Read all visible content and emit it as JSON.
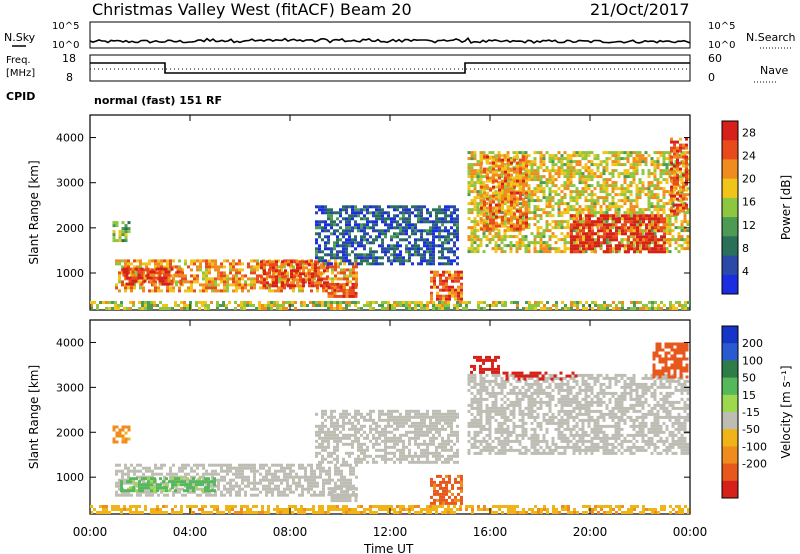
{
  "header": {
    "station": "Christmas Valley West (fitACF)",
    "beam": "Beam 20",
    "date": "21/Oct/2017"
  },
  "panels": {
    "nsky_label": "N.Sky",
    "nsearch_label": "N.Search",
    "nsky_ticks": [
      "10^5",
      "10^0"
    ],
    "nsearch_ticks": [
      "10^5",
      "10^0"
    ],
    "freq_label_1": "Freq.",
    "freq_label_2": "[MHz]",
    "freq_ticks": [
      "18",
      "8"
    ],
    "nave_label": "Nave",
    "nave_ticks": [
      "60",
      "0"
    ],
    "cpid_label": "CPID",
    "cpid_text": "normal (fast) 151 RF"
  },
  "colors": {
    "power": [
      "#1a2de0",
      "#2b4aa8",
      "#2a6f5a",
      "#4d9a54",
      "#8dc63f",
      "#f0c419",
      "#f08c1e",
      "#e84a1c",
      "#d6201a"
    ],
    "velocity": [
      "#1535c8",
      "#2a5ad0",
      "#2e7d48",
      "#55b85a",
      "#9dd84f",
      "#bdbdb4",
      "#f0b419",
      "#f08c1e",
      "#e8581c",
      "#d6201a"
    ],
    "ground_scatter": "#bdbdb4"
  },
  "chart_data": [
    {
      "type": "heatmap",
      "title": "Power",
      "ylabel": "Slant Range [km]",
      "xlabel": "Time UT",
      "x_ticks": [
        "00:00",
        "04:00",
        "08:00",
        "12:00",
        "16:00",
        "20:00",
        "00:00"
      ],
      "x_range_hours": [
        0,
        24
      ],
      "y_ticks": [
        1000,
        2000,
        3000,
        4000
      ],
      "ylim": [
        180,
        4500
      ],
      "colorbar": {
        "label": "Power [dB]",
        "ticks": [
          4,
          8,
          12,
          16,
          20,
          24,
          28
        ],
        "range": [
          0,
          30
        ]
      },
      "regions": [
        {
          "t0": 0.9,
          "t1": 1.6,
          "r0": 1750,
          "r1": 2150,
          "level": 0.45
        },
        {
          "t0": 1.0,
          "t1": 10.7,
          "r0": 620,
          "r1": 1300,
          "level": 0.7
        },
        {
          "t0": 1.3,
          "t1": 3.6,
          "r0": 740,
          "r1": 1120,
          "level": 0.9
        },
        {
          "t0": 6.8,
          "t1": 9.5,
          "r0": 700,
          "r1": 1280,
          "level": 0.85
        },
        {
          "t0": 9.5,
          "t1": 10.7,
          "r0": 480,
          "r1": 780,
          "level": 0.85
        },
        {
          "t0": 13.6,
          "t1": 14.9,
          "r0": 420,
          "r1": 1050,
          "level": 0.8
        },
        {
          "t0": 15.1,
          "t1": 23.9,
          "r0": 1500,
          "r1": 3700,
          "level": 0.6
        },
        {
          "t0": 15.6,
          "t1": 17.5,
          "r0": 2000,
          "r1": 3600,
          "level": 0.75
        },
        {
          "t0": 19.2,
          "t1": 23.0,
          "r0": 1500,
          "r1": 2300,
          "level": 0.95
        },
        {
          "t0": 23.2,
          "t1": 23.9,
          "r0": 2300,
          "r1": 4000,
          "level": 0.8
        },
        {
          "t0": 9.0,
          "t1": 14.7,
          "r0": 1200,
          "r1": 2500,
          "level": 0.2
        },
        {
          "t0": 0.0,
          "t1": 24.0,
          "r0": 200,
          "r1": 380,
          "level": 0.55
        }
      ]
    },
    {
      "type": "heatmap",
      "title": "Velocity",
      "ylabel": "Slant Range [km]",
      "xlabel": "Time UT",
      "x_ticks": [
        "00:00",
        "04:00",
        "08:00",
        "12:00",
        "16:00",
        "20:00",
        "00:00"
      ],
      "x_range_hours": [
        0,
        24
      ],
      "y_ticks": [
        1000,
        2000,
        3000,
        4000
      ],
      "ylim": [
        180,
        4500
      ],
      "colorbar": {
        "label": "Velocity [m s⁻¹]",
        "ticks": [
          200,
          100,
          50,
          15,
          -15,
          -50,
          -100,
          -200
        ],
        "range": [
          -250,
          250
        ]
      },
      "regions": [
        {
          "t0": 0.9,
          "t1": 1.6,
          "r0": 1800,
          "r1": 2150,
          "vel": -60
        },
        {
          "t0": 1.0,
          "t1": 10.7,
          "r0": 620,
          "r1": 1300,
          "vel": 0
        },
        {
          "t0": 1.2,
          "t1": 5.0,
          "r0": 680,
          "r1": 1000,
          "vel": 40
        },
        {
          "t0": 9.5,
          "t1": 10.7,
          "r0": 480,
          "r1": 780,
          "vel": 0
        },
        {
          "t0": 13.6,
          "t1": 14.9,
          "r0": 420,
          "r1": 1050,
          "vel": -110
        },
        {
          "t0": 15.1,
          "t1": 23.9,
          "r0": 1500,
          "r1": 3300,
          "vel": 0
        },
        {
          "t0": 15.2,
          "t1": 16.4,
          "r0": 3300,
          "r1": 3700,
          "vel": -200
        },
        {
          "t0": 16.5,
          "t1": 19.5,
          "r0": 3150,
          "r1": 3350,
          "vel": -200
        },
        {
          "t0": 22.5,
          "t1": 23.9,
          "r0": 3200,
          "r1": 4000,
          "vel": -150
        },
        {
          "t0": 9.0,
          "t1": 14.7,
          "r0": 1300,
          "r1": 2500,
          "vel": 0
        },
        {
          "t0": 0.0,
          "t1": 24.0,
          "r0": 200,
          "r1": 380,
          "vel": -40
        }
      ]
    }
  ]
}
